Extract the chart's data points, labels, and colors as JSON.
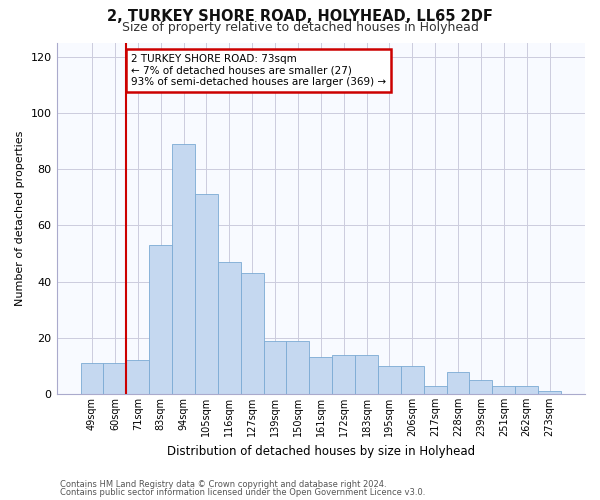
{
  "title": "2, TURKEY SHORE ROAD, HOLYHEAD, LL65 2DF",
  "subtitle": "Size of property relative to detached houses in Holyhead",
  "xlabel": "Distribution of detached houses by size in Holyhead",
  "ylabel": "Number of detached properties",
  "bar_values": [
    11,
    11,
    12,
    53,
    89,
    71,
    47,
    43,
    19,
    19,
    13,
    14,
    14,
    10,
    10,
    3,
    8,
    5,
    3,
    3,
    1
  ],
  "bar_labels": [
    "49sqm",
    "60sqm",
    "71sqm",
    "83sqm",
    "94sqm",
    "105sqm",
    "116sqm",
    "127sqm",
    "139sqm",
    "150sqm",
    "161sqm",
    "172sqm",
    "183sqm",
    "195sqm",
    "206sqm",
    "217sqm",
    "228sqm",
    "239sqm",
    "251sqm",
    "262sqm",
    "273sqm"
  ],
  "bar_color": "#c5d8f0",
  "bar_edge_color": "#7baad4",
  "highlight_index": 2,
  "highlight_line_color": "#cc0000",
  "annotation_text": "2 TURKEY SHORE ROAD: 73sqm\n← 7% of detached houses are smaller (27)\n93% of semi-detached houses are larger (369) →",
  "annotation_box_color": "#ffffff",
  "annotation_box_edge": "#cc0000",
  "ylim": [
    0,
    125
  ],
  "yticks": [
    0,
    20,
    40,
    60,
    80,
    100,
    120
  ],
  "footer_line1": "Contains HM Land Registry data © Crown copyright and database right 2024.",
  "footer_line2": "Contains public sector information licensed under the Open Government Licence v3.0.",
  "bg_color": "#ffffff",
  "plot_bg_color": "#f8faff"
}
